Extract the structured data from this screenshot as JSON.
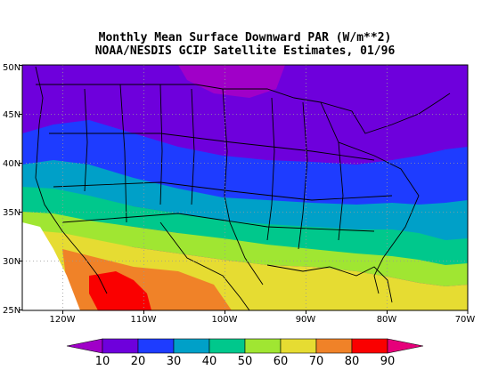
{
  "title_line1": "Monthly Mean Surface Downward PAR (W/m**2)",
  "title_line2": "NOAA/NESDIS GCIP Satellite Estimates, 01/96",
  "map": {
    "lon_range": [
      -125,
      -70
    ],
    "lat_range": [
      25,
      50
    ],
    "x_ticks": [
      "120W",
      "110W",
      "100W",
      "90W",
      "80W",
      "70W"
    ],
    "y_ticks": [
      "25N",
      "30N",
      "35N",
      "40N",
      "45N",
      "50N"
    ],
    "grid": "dotted"
  },
  "colorbar": {
    "levels": [
      "10",
      "20",
      "30",
      "40",
      "50",
      "60",
      "70",
      "80",
      "90"
    ],
    "colors": [
      "#a000c8",
      "#6e00dc",
      "#1e3cff",
      "#00a0c8",
      "#00c88c",
      "#a0e632",
      "#e6dc32",
      "#f08228",
      "#fa0000",
      "#e6007a"
    ]
  }
}
